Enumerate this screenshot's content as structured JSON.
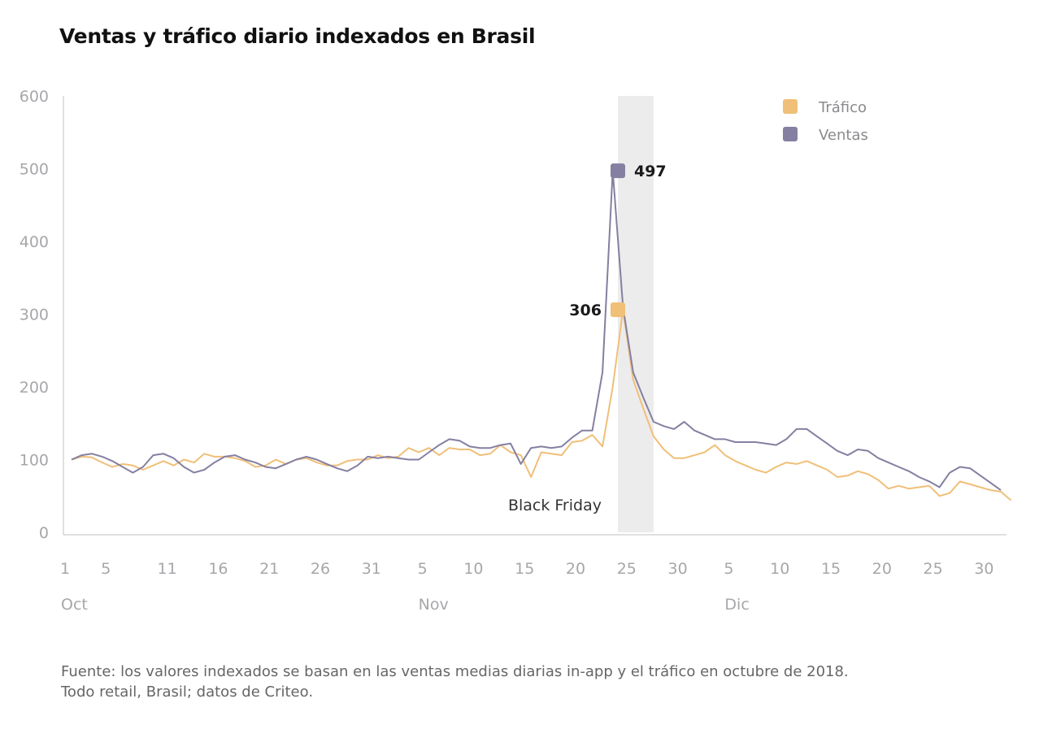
{
  "chart_data": {
    "type": "line",
    "title": "Ventas y tráfico diario indexados en Brasil",
    "ylim": [
      0,
      600
    ],
    "y_ticks": [
      0,
      100,
      200,
      300,
      400,
      500,
      600
    ],
    "x_ticks": [
      {
        "day": 1,
        "label": "1"
      },
      {
        "day": 5,
        "label": "5"
      },
      {
        "day": 11,
        "label": "11"
      },
      {
        "day": 16,
        "label": "16"
      },
      {
        "day": 21,
        "label": "21"
      },
      {
        "day": 26,
        "label": "26"
      },
      {
        "day": 31,
        "label": "31"
      },
      {
        "day": 36,
        "label": "5"
      },
      {
        "day": 41,
        "label": "10"
      },
      {
        "day": 46,
        "label": "15"
      },
      {
        "day": 51,
        "label": "20"
      },
      {
        "day": 56,
        "label": "25"
      },
      {
        "day": 61,
        "label": "30"
      },
      {
        "day": 66,
        "label": "5"
      },
      {
        "day": 71,
        "label": "10"
      },
      {
        "day": 76,
        "label": "15"
      },
      {
        "day": 81,
        "label": "20"
      },
      {
        "day": 86,
        "label": "25"
      },
      {
        "day": 91,
        "label": "30"
      }
    ],
    "xlim": [
      1,
      92
    ],
    "months": [
      {
        "day": 1,
        "label": "Oct"
      },
      {
        "day": 36,
        "label": "Nov"
      },
      {
        "day": 66,
        "label": "Dic"
      }
    ],
    "grid": false,
    "legend_position": "top-right",
    "shaded_region": {
      "x_start": 54.5,
      "x_end": 58,
      "label": "Black Friday"
    },
    "peak_labels": [
      {
        "series": "Ventas",
        "day": 54.5,
        "value": 497,
        "label": "497"
      },
      {
        "series": "Tráfico",
        "day": 54.5,
        "value": 306,
        "label": "306"
      }
    ],
    "series": [
      {
        "name": "Tráfico",
        "color": "#f0bf78",
        "values": [
          100,
          104,
          103,
          96,
          90,
          94,
          92,
          86,
          92,
          98,
          92,
          100,
          96,
          108,
          104,
          104,
          102,
          98,
          90,
          92,
          100,
          94,
          100,
          102,
          96,
          92,
          92,
          98,
          100,
          100,
          106,
          102,
          104,
          116,
          110,
          116,
          106,
          116,
          114,
          114,
          106,
          108,
          120,
          110,
          106,
          76,
          110,
          108,
          106,
          124,
          126,
          134,
          118,
          200,
          306,
          210,
          170,
          132,
          114,
          102,
          102,
          106,
          110,
          120,
          106,
          98,
          92,
          86,
          82,
          90,
          96,
          94,
          98,
          92,
          86,
          76,
          78,
          84,
          80,
          72,
          60,
          64,
          60,
          62,
          64,
          50,
          54,
          70,
          66,
          62,
          58,
          56,
          44
        ],
        "x_start": 1
      },
      {
        "name": "Ventas",
        "color": "#857fa1",
        "values": [
          100,
          106,
          108,
          104,
          98,
          90,
          82,
          90,
          106,
          108,
          102,
          90,
          82,
          86,
          96,
          104,
          106,
          100,
          96,
          90,
          88,
          94,
          100,
          104,
          100,
          94,
          88,
          84,
          92,
          104,
          102,
          104,
          102,
          100,
          100,
          110,
          120,
          128,
          126,
          118,
          116,
          116,
          120,
          122,
          94,
          116,
          118,
          116,
          118,
          130,
          140,
          140,
          220,
          497,
          310,
          220,
          185,
          152,
          146,
          142,
          152,
          140,
          134,
          128,
          128,
          124,
          124,
          124,
          122,
          120,
          128,
          142,
          142,
          132,
          122,
          112,
          106,
          114,
          112,
          102,
          96,
          90,
          84,
          76,
          70,
          62,
          82,
          90,
          88,
          78,
          68,
          58
        ],
        "x_start": 1
      }
    ]
  },
  "footnote": {
    "line1": "Fuente: los valores indexados se basan en las ventas medias diarias in-app y el tráfico en octubre de 2018.",
    "line2": "Todo retail, Brasil; datos de Criteo."
  }
}
